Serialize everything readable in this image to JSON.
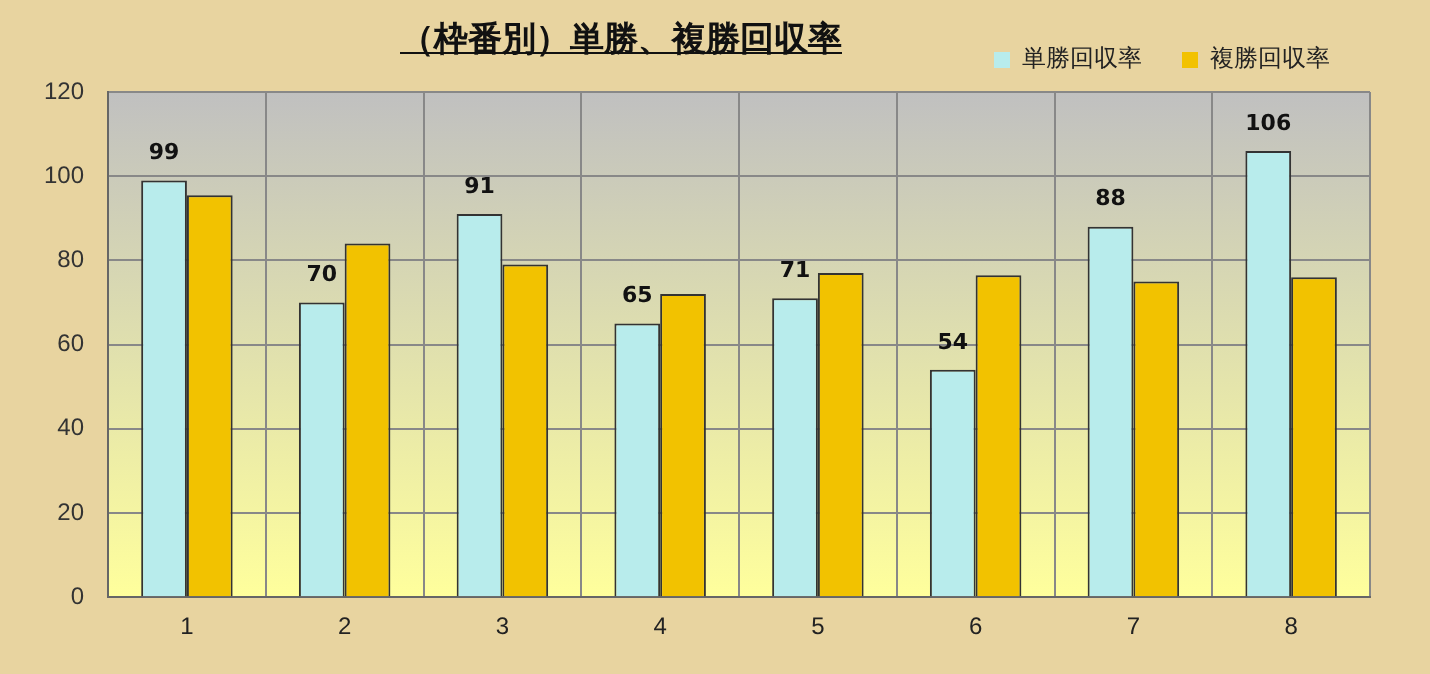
{
  "chart_data": {
    "type": "bar",
    "title": "（枠番別）単勝、複勝回収率",
    "categories": [
      "1",
      "2",
      "3",
      "4",
      "5",
      "6",
      "7",
      "8"
    ],
    "series": [
      {
        "name": "単勝回収率",
        "color": "#b8ecec",
        "values": [
          99,
          70,
          91,
          65,
          71,
          54,
          88,
          106
        ],
        "value_labels": [
          "99",
          "70",
          "91",
          "65",
          "71",
          "54",
          "88",
          "106"
        ]
      },
      {
        "name": "複勝回収率",
        "color": "#f2c200",
        "values": [
          95.5,
          84,
          79,
          72,
          77,
          76.5,
          75,
          76
        ]
      }
    ],
    "ylim": [
      0,
      120
    ],
    "yticks": [
      0,
      20,
      40,
      60,
      80,
      100,
      120
    ],
    "grid": true,
    "legend": "top right"
  }
}
